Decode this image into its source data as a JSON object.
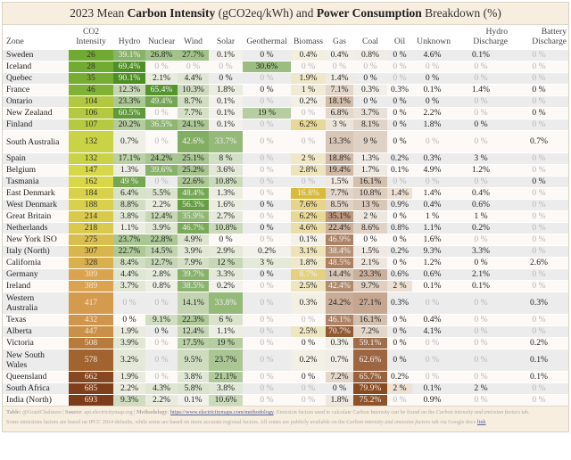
{
  "title": {
    "prefix": "2023 Mean ",
    "bold1": "Carbon Intensity",
    "mid": " (gCO2eq/kWh) and ",
    "bold2": "Power Consumption",
    "suffix": " Breakdown (%)"
  },
  "chart_data": {
    "type": "table",
    "columns": [
      "Zone",
      "CO2 Intensity",
      "Hydro",
      "Nuclear",
      "Wind",
      "Solar",
      "Geothermal",
      "Biomass",
      "Gas",
      "Coal",
      "Oil",
      "Unknown",
      "Hydro Discharge",
      "Battery Discharge"
    ],
    "color_scales": {
      "co2": [
        "#5aa02c",
        "#d9d94a",
        "#d9a050",
        "#7a3a1a"
      ],
      "low_carbon": "#4e8f25",
      "biomass": "#d9b830",
      "fossil": "#8a4a20"
    },
    "rows": [
      {
        "zone": "Sweden",
        "co2": "26",
        "v": [
          "39.1%",
          "26.8%",
          "27.7%",
          "0.1%",
          "0 %",
          "0.4%",
          "0.4%",
          "0.8%",
          "0 %",
          "4.6%",
          "0.1%",
          "0 %"
        ],
        "muted": [
          11
        ]
      },
      {
        "zone": "Iceland",
        "co2": "28",
        "v": [
          "69.4%",
          "0 %",
          "0 %",
          "0 %",
          "30.6%",
          "0 %",
          "0 %",
          "0 %",
          "0 %",
          "0 %",
          "0 %",
          "0 %"
        ],
        "muted": [
          1,
          2,
          3,
          5,
          6,
          7,
          8,
          9,
          10,
          11
        ]
      },
      {
        "zone": "Quebec",
        "co2": "35",
        "v": [
          "90.1%",
          "2.1%",
          "4.4%",
          "0 %",
          "0 %",
          "1.9%",
          "1.4%",
          "0 %",
          "0 %",
          "0 %",
          "0 %",
          "0 %"
        ],
        "muted": [
          4,
          8,
          10,
          11
        ]
      },
      {
        "zone": "France",
        "co2": "46",
        "v": [
          "12.3%",
          "65.4%",
          "10.3%",
          "1.8%",
          "0 %",
          "1 %",
          "7.1%",
          "0.3%",
          "0.3%",
          "0.1%",
          "1.4%",
          "0 %"
        ],
        "muted": []
      },
      {
        "zone": "Ontario",
        "co2": "104",
        "v": [
          "23.3%",
          "49.4%",
          "8.7%",
          "0.1%",
          "0 %",
          "0.2%",
          "18.1%",
          "0 %",
          "0 %",
          "0 %",
          "0 %",
          "0 %"
        ],
        "muted": [
          4,
          10,
          11
        ]
      },
      {
        "zone": "New Zealand",
        "co2": "106",
        "v": [
          "60.5%",
          "0 %",
          "7.7%",
          "0.1%",
          "19 %",
          "0 %",
          "6.8%",
          "3.7%",
          "0 %",
          "2.2%",
          "0 %",
          "0 %"
        ],
        "muted": [
          1,
          5,
          10
        ]
      },
      {
        "zone": "Finland",
        "co2": "107",
        "v": [
          "20.2%",
          "36.5%",
          "24.1%",
          "0.1%",
          "0 %",
          "6.2%",
          "3 %",
          "8.1%",
          "0 %",
          "1.8%",
          "0 %",
          "0 %"
        ],
        "muted": [
          4,
          11
        ]
      },
      {
        "zone": "South Australia",
        "co2": "132",
        "v": [
          "0.7%",
          "0 %",
          "42.6%",
          "33.7%",
          "0 %",
          "0 %",
          "13.3%",
          "9 %",
          "0 %",
          "0 %",
          "0 %",
          "0.7%"
        ],
        "muted": [
          1,
          4,
          5,
          9,
          10
        ],
        "dbl": true
      },
      {
        "zone": "Spain",
        "co2": "132",
        "v": [
          "17.1%",
          "24.2%",
          "25.1%",
          "8 %",
          "0 %",
          "2 %",
          "18.8%",
          "1.3%",
          "0.2%",
          "0.3%",
          "3 %",
          "0 %"
        ],
        "muted": [
          4,
          11
        ]
      },
      {
        "zone": "Belgium",
        "co2": "147",
        "v": [
          "1.3%",
          "39.6%",
          "25.2%",
          "3.6%",
          "0 %",
          "2.8%",
          "19.4%",
          "1.7%",
          "0.1%",
          "4.9%",
          "1.2%",
          "0 %"
        ],
        "muted": [
          4,
          11
        ]
      },
      {
        "zone": "Tasmania",
        "co2": "162",
        "v": [
          "49 %",
          "0 %",
          "22.6%",
          "10.8%",
          "0 %",
          "0 %",
          "1.5%",
          "16.1%",
          "0 %",
          "0 %",
          "0 %",
          "0 %"
        ],
        "muted": [
          1,
          4,
          5,
          8,
          9,
          10
        ]
      },
      {
        "zone": "East Denmark",
        "co2": "184",
        "v": [
          "6.4%",
          "5.5%",
          "48.4%",
          "1.3%",
          "0 %",
          "16.8%",
          "7.7%",
          "10.8%",
          "1.4%",
          "1.4%",
          "0.4%",
          "0 %"
        ],
        "muted": [
          4,
          11
        ]
      },
      {
        "zone": "West Denmark",
        "co2": "188",
        "v": [
          "8.8%",
          "2.2%",
          "56.3%",
          "1.6%",
          "0 %",
          "7.6%",
          "8.5%",
          "13 %",
          "0.9%",
          "0.4%",
          "0.6%",
          "0 %"
        ],
        "muted": [
          11
        ]
      },
      {
        "zone": "Great Britain",
        "co2": "214",
        "v": [
          "3.8%",
          "12.4%",
          "35.9%",
          "2.7%",
          "0 %",
          "6.2%",
          "35.1%",
          "2 %",
          "0 %",
          "1 %",
          "1 %",
          "0 %"
        ],
        "muted": [
          4,
          11
        ]
      },
      {
        "zone": "Netherlands",
        "co2": "218",
        "v": [
          "1.1%",
          "3.9%",
          "46.7%",
          "10.8%",
          "0 %",
          "4.6%",
          "22.4%",
          "8.6%",
          "0.8%",
          "1.1%",
          "0.2%",
          "0 %"
        ],
        "muted": [
          11
        ]
      },
      {
        "zone": "New York ISO",
        "co2": "275",
        "v": [
          "23.7%",
          "22.8%",
          "4.9%",
          "0 %",
          "0 %",
          "0.1%",
          "46.9%",
          "0 %",
          "0 %",
          "1.6%",
          "0 %",
          "0 %"
        ],
        "muted": [
          4,
          10,
          11
        ]
      },
      {
        "zone": "Italy (North)",
        "co2": "307",
        "v": [
          "22.7%",
          "14.5%",
          "3.9%",
          "2.9%",
          "0.2%",
          "3.1%",
          "38.4%",
          "1.5%",
          "0.2%",
          "9.3%",
          "3.3%",
          "0 %"
        ],
        "muted": [
          11
        ]
      },
      {
        "zone": "California",
        "co2": "328",
        "v": [
          "8.4%",
          "12.7%",
          "7.9%",
          "12 %",
          "3 %",
          "1.8%",
          "48.5%",
          "2.1%",
          "0 %",
          "1.2%",
          "0 %",
          "2.6%"
        ],
        "muted": []
      },
      {
        "zone": "Germany",
        "co2": "389",
        "v": [
          "4.4%",
          "2.8%",
          "39.7%",
          "3.3%",
          "0 %",
          "8.7%",
          "14.4%",
          "23.3%",
          "0.6%",
          "0.6%",
          "2.1%",
          "0 %"
        ],
        "muted": [
          11
        ]
      },
      {
        "zone": "Ireland",
        "co2": "389",
        "v": [
          "3.7%",
          "0.8%",
          "38.5%",
          "0.2%",
          "0 %",
          "2.5%",
          "42.4%",
          "9.7%",
          "2 %",
          "0.1%",
          "0.1%",
          "0 %"
        ],
        "muted": [
          4,
          11
        ]
      },
      {
        "zone": "Western Australia",
        "co2": "417",
        "v": [
          "0 %",
          "0 %",
          "14.1%",
          "33.8%",
          "0 %",
          "0.3%",
          "24.2%",
          "27.1%",
          "0.3%",
          "0 %",
          "0 %",
          "0.3%"
        ],
        "muted": [
          0,
          1,
          4,
          9,
          10
        ],
        "dbl": true
      },
      {
        "zone": "Texas",
        "co2": "432",
        "v": [
          "0 %",
          "9.1%",
          "22.3%",
          "6 %",
          "0 %",
          "0 %",
          "46.1%",
          "16.1%",
          "0 %",
          "0.4%",
          "0 %",
          "0 %"
        ],
        "muted": [
          4,
          5,
          10,
          11
        ]
      },
      {
        "zone": "Alberta",
        "co2": "447",
        "v": [
          "1.9%",
          "0 %",
          "12.4%",
          "1.1%",
          "0 %",
          "2.5%",
          "70.7%",
          "7.2%",
          "0 %",
          "4.1%",
          "0 %",
          "0 %"
        ],
        "muted": [
          4,
          10,
          11
        ]
      },
      {
        "zone": "Victoria",
        "co2": "508",
        "v": [
          "3.9%",
          "0 %",
          "17.5%",
          "19 %",
          "0 %",
          "0 %",
          "0.3%",
          "59.1%",
          "0 %",
          "0 %",
          "0 %",
          "0.2%"
        ],
        "muted": [
          1,
          4,
          9,
          10
        ]
      },
      {
        "zone": "New South Wales",
        "co2": "578",
        "v": [
          "3.2%",
          "0 %",
          "9.5%",
          "23.7%",
          "0 %",
          "0.2%",
          "0.7%",
          "62.6%",
          "0 %",
          "0 %",
          "0 %",
          "0.1%"
        ],
        "muted": [
          1,
          4,
          9,
          10
        ],
        "dbl": true
      },
      {
        "zone": "Queensland",
        "co2": "662",
        "v": [
          "1.9%",
          "0 %",
          "3.8%",
          "21.1%",
          "0 %",
          "0 %",
          "7.2%",
          "65.7%",
          "0.2%",
          "0 %",
          "0 %",
          "0.1%"
        ],
        "muted": [
          1,
          4,
          9,
          10
        ]
      },
      {
        "zone": "South Africa",
        "co2": "685",
        "v": [
          "2.2%",
          "4.3%",
          "5.8%",
          "3.8%",
          "0 %",
          "0 %",
          "0 %",
          "79.9%",
          "2 %",
          "0.1%",
          "2 %",
          "0 %"
        ],
        "muted": [
          4,
          5,
          11
        ]
      },
      {
        "zone": "India (North)",
        "co2": "693",
        "v": [
          "9.3%",
          "2.2%",
          "0.1%",
          "10.6%",
          "0 %",
          "0 %",
          "1.8%",
          "75.2%",
          "0 %",
          "0.9%",
          "0 %",
          "0 %"
        ],
        "muted": [
          4,
          5,
          8,
          10,
          11
        ]
      }
    ]
  },
  "footer": {
    "table_label": "Table:",
    "author": " @GrantChalmers | ",
    "source_label": "Source",
    "source": ": api.electricitymap.org | ",
    "method_label": "Methodology",
    "method_sep": ": ",
    "method_link": "https://www.electricitymaps.com/methodology",
    "line1_rest": ". Emission factors used to calculate Carbon Intensity can be found on the ",
    "line1_italic": "Carbon intensity and emission factors",
    "line1_end": " tab.",
    "line2": "Some emissions factors are based on IPCC 2014 defaults, while some are based on more accurate regional factors. All zones are publicly available on the ",
    "line2_italic": "Carbon intensity and emission factors",
    "line2_mid": " tab via Google docs ",
    "link_label": "link"
  }
}
